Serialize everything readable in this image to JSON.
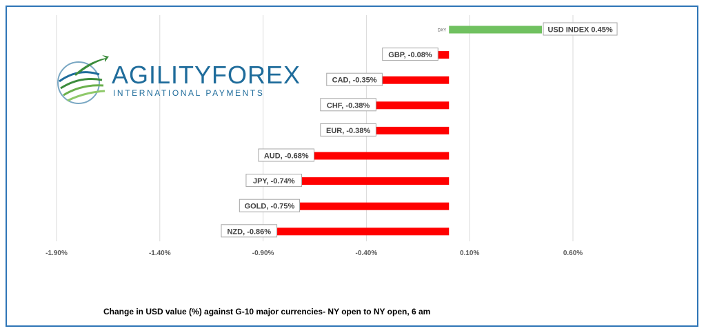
{
  "logo": {
    "text_main": "AGILITYFOREX",
    "text_sub": "INTERNATIONAL PAYMENTS",
    "icon": "globe-swoosh-icon"
  },
  "caption": "Change in  USD value (%)  against  G-10 major currencies- NY open to NY open, 6 am",
  "colors": {
    "positive": "#70c160",
    "negative": "#ff0000",
    "grid": "#d9d9d9",
    "frame": "#2e75b6"
  },
  "chart_data": {
    "type": "bar",
    "orientation": "horizontal",
    "categories": [
      "DXY",
      "GBP",
      "CAD",
      "CHF",
      "EUR",
      "AUD",
      "JPY",
      "GOLD",
      "NZD"
    ],
    "values": [
      0.45,
      -0.08,
      -0.35,
      -0.38,
      -0.38,
      -0.68,
      -0.74,
      -0.75,
      -0.86
    ],
    "data_labels": [
      "USD INDEX 0.45%",
      "GBP, -0.08%",
      "CAD, -0.35%",
      "CHF, -0.38%",
      "EUR, -0.38%",
      "AUD, -0.68%",
      "JPY, -0.74%",
      "GOLD, -0.75%",
      "NZD, -0.86%"
    ],
    "xticks": [
      -1.9,
      -1.4,
      -0.9,
      -0.4,
      0.1,
      0.6
    ],
    "xtick_labels": [
      "-1.90%",
      "-1.40%",
      "-0.90%",
      "-0.40%",
      "0.10%",
      "0.60%"
    ],
    "xlim": [
      -1.9,
      0.6
    ],
    "grid": true
  }
}
